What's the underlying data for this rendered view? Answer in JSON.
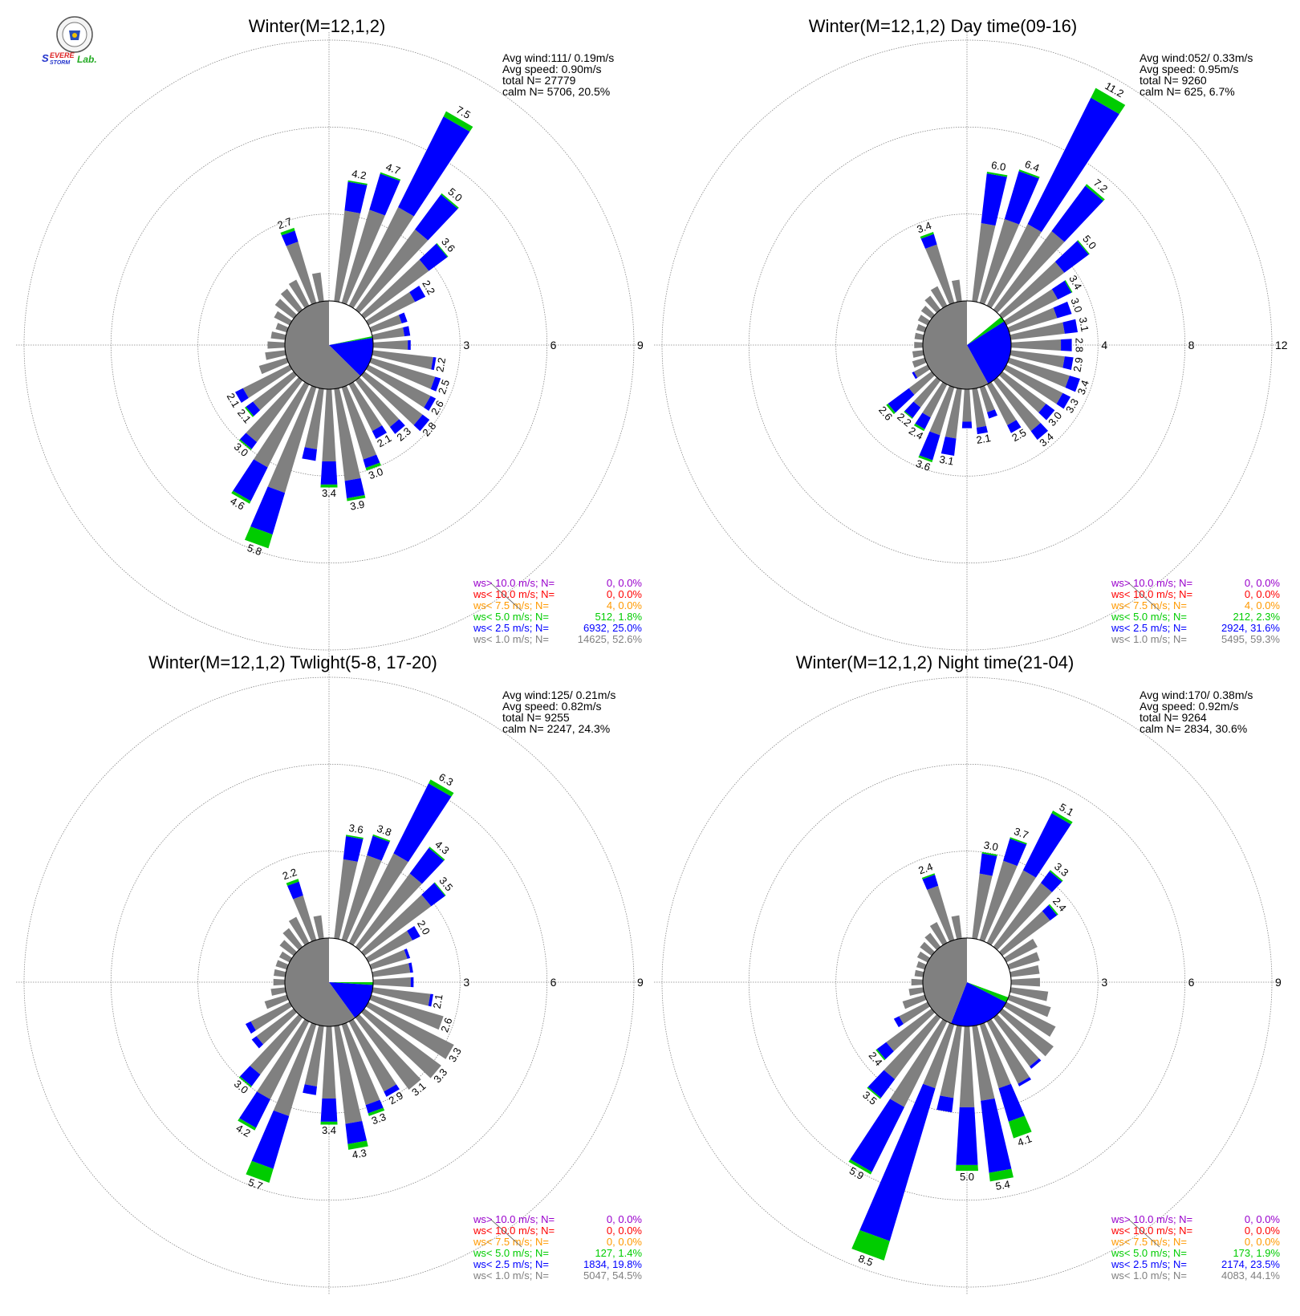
{
  "logo": {
    "name": "severe-storm-lab-logo",
    "text": "SEVERE STORM Lab."
  },
  "colors": {
    "grey": "#808080",
    "blue": "#0000ff",
    "green": "#00cc00",
    "orange": "#ff9900",
    "red": "#ff0000",
    "purple": "#9900cc",
    "grid": "#888888"
  },
  "legend_labels": [
    "ws> 10.0 m/s; N=",
    "ws< 10.0 m/s; N=",
    "ws<  7.5 m/s; N=",
    "ws<  5.0 m/s; N=",
    "ws<  2.5 m/s; N=",
    "ws<  1.0 m/s; N="
  ],
  "chart_data": [
    {
      "type": "polar-bar",
      "title": "Winter(M=12,1,2)",
      "ring_labels": [
        "3",
        "6",
        "9"
      ],
      "rmax": 9,
      "stats": [
        "Avg wind:111/ 0.19m/s",
        "Avg speed: 0.90m/s",
        "total N=      27779",
        "calm N=   5706,  20.5%"
      ],
      "center_pie": {
        "grey": 0.626,
        "white": 0.218,
        "green": 0.006,
        "blue": 0.15
      },
      "directions_deg": [
        0,
        10,
        20,
        30,
        40,
        50,
        60,
        70,
        80,
        90,
        100,
        110,
        120,
        130,
        140,
        150,
        160,
        170,
        180,
        190,
        200,
        210,
        220,
        230,
        240,
        250,
        260,
        270,
        280,
        290,
        300,
        310,
        320,
        330,
        340,
        350
      ],
      "bar_totals": [
        0,
        4.2,
        4.7,
        7.5,
        5.0,
        3.6,
        2.2,
        1.3,
        1.3,
        1.3,
        2.2,
        2.5,
        2.6,
        2.8,
        2.3,
        2.1,
        3.0,
        3.9,
        3.4,
        2.5,
        5.8,
        4.6,
        3.0,
        2.1,
        2.1,
        1.0,
        0.7,
        0.6,
        0.5,
        0.4,
        0.6,
        0.8,
        0.9,
        1.0,
        2.7,
        1.0
      ],
      "bar_blue": [
        0,
        1.0,
        1.3,
        3.5,
        1.5,
        0.8,
        0.4,
        0.2,
        0.2,
        0.1,
        0.1,
        0.2,
        0.2,
        0.3,
        0.3,
        0.3,
        0.3,
        0.6,
        0.8,
        0.4,
        1.5,
        1.3,
        0.3,
        0.3,
        0.3,
        0.0,
        0.0,
        0.0,
        0.0,
        0.0,
        0.0,
        0.0,
        0.0,
        0.0,
        0.4,
        0.0
      ],
      "bar_green": [
        0,
        0.05,
        0.05,
        0.2,
        0.05,
        0.03,
        0,
        0,
        0,
        0,
        0,
        0,
        0,
        0,
        0,
        0,
        0.1,
        0.1,
        0.1,
        0,
        0.5,
        0.1,
        0.05,
        0.05,
        0,
        0,
        0,
        0,
        0,
        0,
        0,
        0,
        0,
        0,
        0.1,
        0
      ],
      "bar_labels": [
        "",
        "4.2",
        "4.7",
        "7.5",
        "5.0",
        "3.6",
        "2.2",
        "",
        "",
        "",
        "2.2",
        "2.5",
        "2.6",
        "2.8",
        "2.3",
        "2.1",
        "3.0",
        "3.9",
        "3.4",
        "",
        "5.8",
        "4.6",
        "3.0",
        "2.1",
        "2.1",
        "",
        "",
        "",
        "",
        "",
        "",
        "",
        "",
        "",
        "2.7",
        ""
      ],
      "legend_values": [
        "0,  0.0%",
        "0,  0.0%",
        "4,  0.0%",
        "512,  1.8%",
        "6932, 25.0%",
        "14625, 52.6%"
      ]
    },
    {
      "type": "polar-bar",
      "title": "Winter(M=12,1,2) Day time(09-16)",
      "ring_labels": [
        "4",
        "8",
        "12"
      ],
      "rmax": 12,
      "stats": [
        "Avg wind:052/ 0.33m/s",
        "Avg speed: 0.95m/s",
        "total N=       9260",
        "calm N=    625,   6.7%"
      ],
      "center_pie": {
        "grey": 0.58,
        "white": 0.14,
        "green": 0.02,
        "blue": 0.26
      },
      "directions_deg": [
        0,
        10,
        20,
        30,
        40,
        50,
        60,
        70,
        80,
        90,
        100,
        110,
        120,
        130,
        140,
        150,
        160,
        170,
        180,
        190,
        200,
        210,
        220,
        230,
        240,
        250,
        260,
        270,
        280,
        290,
        300,
        310,
        320,
        330,
        340,
        350
      ],
      "bar_totals": [
        0,
        6.0,
        6.4,
        11.2,
        7.2,
        5.0,
        3.4,
        3.0,
        3.1,
        2.8,
        2.9,
        3.4,
        3.3,
        3.0,
        3.4,
        2.5,
        1.5,
        2.1,
        1.8,
        3.1,
        3.6,
        2.4,
        2.2,
        2.6,
        0.8,
        0.6,
        0.5,
        0.4,
        0.4,
        0.4,
        0.5,
        0.6,
        0.8,
        1.0,
        3.4,
        1.0
      ],
      "bar_blue": [
        0,
        2.3,
        2.3,
        6.5,
        2.6,
        1.4,
        0.7,
        0.7,
        0.6,
        0.5,
        0.4,
        0.5,
        0.4,
        0.5,
        0.5,
        0.4,
        0.3,
        0.3,
        0.3,
        0.8,
        1.2,
        0.6,
        0.6,
        1.2,
        0.1,
        0,
        0,
        0,
        0,
        0,
        0,
        0,
        0,
        0,
        0.5,
        0
      ],
      "bar_green": [
        0,
        0.08,
        0.08,
        0.5,
        0.1,
        0.05,
        0.05,
        0,
        0,
        0,
        0,
        0,
        0,
        0,
        0,
        0,
        0,
        0,
        0,
        0,
        0.1,
        0.1,
        0.05,
        0.1,
        0,
        0,
        0,
        0,
        0,
        0,
        0,
        0,
        0,
        0,
        0.1,
        0
      ],
      "bar_labels": [
        "",
        "6.0",
        "6.4",
        "11.2",
        "7.2",
        "5.0",
        "3.4",
        "3.0",
        "3.1",
        "2.8",
        "2.9",
        "3.4",
        "3.3",
        "3.0",
        "3.4",
        "2.5",
        "",
        "2.1",
        "",
        "3.1",
        "3.6",
        "2.4",
        "2.2",
        "2.6",
        "",
        "",
        "",
        "",
        "",
        "",
        "",
        "",
        "",
        "",
        "3.4",
        ""
      ],
      "legend_values": [
        "0,  0.0%",
        "0,  0.0%",
        "4,  0.0%",
        "212,  2.3%",
        "2924, 31.6%",
        "5495, 59.3%"
      ]
    },
    {
      "type": "polar-bar",
      "title": "Winter(M=12,1,2) Twlight(5-8, 17-20)",
      "ring_labels": [
        "3",
        "6",
        "9"
      ],
      "rmax": 9,
      "stats": [
        "Avg wind:125/ 0.21m/s",
        "Avg speed: 0.82m/s",
        "total N=       9255",
        "calm N=   2247,  24.3%"
      ],
      "center_pie": {
        "grey": 0.6,
        "white": 0.25,
        "green": 0.01,
        "blue": 0.14
      },
      "directions_deg": [
        0,
        10,
        20,
        30,
        40,
        50,
        60,
        70,
        80,
        90,
        100,
        110,
        120,
        130,
        140,
        150,
        160,
        170,
        180,
        190,
        200,
        210,
        220,
        230,
        240,
        250,
        260,
        270,
        280,
        290,
        300,
        310,
        320,
        330,
        340,
        350
      ],
      "bar_totals": [
        0,
        3.6,
        3.8,
        6.3,
        4.3,
        3.5,
        2.0,
        1.4,
        1.4,
        1.4,
        2.1,
        2.6,
        3.3,
        3.3,
        3.1,
        2.9,
        3.3,
        4.3,
        3.4,
        2.4,
        5.7,
        4.2,
        3.0,
        1.8,
        1.7,
        0.8,
        0.5,
        0.4,
        0.4,
        0.4,
        0.4,
        0.6,
        0.8,
        1.0,
        2.2,
        0.8
      ],
      "bar_blue": [
        0,
        0.8,
        0.7,
        2.7,
        1.1,
        0.6,
        0.3,
        0.1,
        0.1,
        0.1,
        0.1,
        0,
        0,
        0,
        0,
        0.2,
        0.3,
        0.7,
        0.8,
        0.3,
        1.9,
        1.1,
        0.5,
        0.2,
        0.2,
        0,
        0,
        0,
        0,
        0,
        0,
        0,
        0,
        0,
        0.5,
        0
      ],
      "bar_green": [
        0,
        0.05,
        0.05,
        0.15,
        0.05,
        0.03,
        0,
        0,
        0,
        0,
        0,
        0,
        0,
        0,
        0,
        0,
        0.1,
        0.2,
        0.1,
        0,
        0.5,
        0.1,
        0.05,
        0,
        0,
        0,
        0,
        0,
        0,
        0,
        0,
        0,
        0,
        0,
        0.1,
        0
      ],
      "bar_labels": [
        "",
        "3.6",
        "3.8",
        "6.3",
        "4.3",
        "3.5",
        "2.0",
        "",
        "",
        "",
        "2.1",
        "2.6",
        "3.3",
        "3.3",
        "3.1",
        "2.9",
        "3.3",
        "4.3",
        "3.4",
        "",
        "5.7",
        "4.2",
        "3.0",
        "",
        "",
        "",
        "",
        "",
        "",
        "",
        "",
        "",
        "",
        "",
        "2.2",
        ""
      ],
      "legend_values": [
        "0,  0.0%",
        "0,  0.0%",
        "0,  0.0%",
        "127,  1.4%",
        "1834, 19.8%",
        "5047, 54.5%"
      ]
    },
    {
      "type": "polar-bar",
      "title": "Winter(M=12,1,2) Night time(21-04)",
      "ring_labels": [
        "3",
        "6",
        "9"
      ],
      "rmax": 9,
      "stats": [
        "Avg wind:170/ 0.38m/s",
        "Avg speed: 0.92m/s",
        "total N=       9264",
        "calm N=   2834,  30.6%"
      ],
      "center_pie": {
        "grey": 0.441,
        "white": 0.306,
        "green": 0.02,
        "blue": 0.233
      },
      "directions_deg": [
        0,
        10,
        20,
        30,
        40,
        50,
        60,
        70,
        80,
        90,
        100,
        110,
        120,
        130,
        140,
        150,
        160,
        170,
        180,
        190,
        200,
        210,
        220,
        230,
        240,
        250,
        260,
        270,
        280,
        290,
        300,
        310,
        320,
        330,
        340,
        350
      ],
      "bar_totals": [
        0,
        3.0,
        3.7,
        5.1,
        3.3,
        2.4,
        1.2,
        1.1,
        1.0,
        1.0,
        1.3,
        1.5,
        1.9,
        2.2,
        2.2,
        2.5,
        4.1,
        5.4,
        5.0,
        3.0,
        8.5,
        5.9,
        3.5,
        2.4,
        1.3,
        0.8,
        0.5,
        0.4,
        0.3,
        0.3,
        0.4,
        0.5,
        0.6,
        0.8,
        2.4,
        0.8
      ],
      "bar_blue": [
        0,
        0.7,
        0.8,
        2.2,
        0.5,
        0.3,
        0,
        0,
        0,
        0,
        0,
        0,
        0,
        0,
        0.1,
        0.1,
        1.2,
        2.5,
        2.0,
        0.5,
        5.5,
        2.5,
        0.8,
        0.4,
        0.2,
        0,
        0,
        0,
        0,
        0,
        0,
        0,
        0,
        0,
        0.4,
        0
      ],
      "bar_green": [
        0,
        0.05,
        0.05,
        0.1,
        0.05,
        0.05,
        0,
        0,
        0,
        0,
        0,
        0,
        0,
        0,
        0,
        0,
        0.6,
        0.3,
        0.2,
        0,
        0.7,
        0.1,
        0.05,
        0.05,
        0,
        0,
        0,
        0,
        0,
        0,
        0,
        0,
        0,
        0,
        0.05,
        0
      ],
      "bar_labels": [
        "",
        "3.0",
        "3.7",
        "5.1",
        "3.3",
        "2.4",
        "",
        "",
        "",
        "",
        "",
        "",
        "",
        "",
        "",
        "",
        "4.1",
        "5.4",
        "5.0",
        "",
        "8.5",
        "5.9",
        "3.5",
        "2.4",
        "",
        "",
        "",
        "",
        "",
        "",
        "",
        "",
        "",
        "",
        "2.4",
        ""
      ],
      "legend_values": [
        "0,  0.0%",
        "0,  0.0%",
        "0,  0.0%",
        "173,  1.9%",
        "2174, 23.5%",
        "4083, 44.1%"
      ]
    }
  ]
}
